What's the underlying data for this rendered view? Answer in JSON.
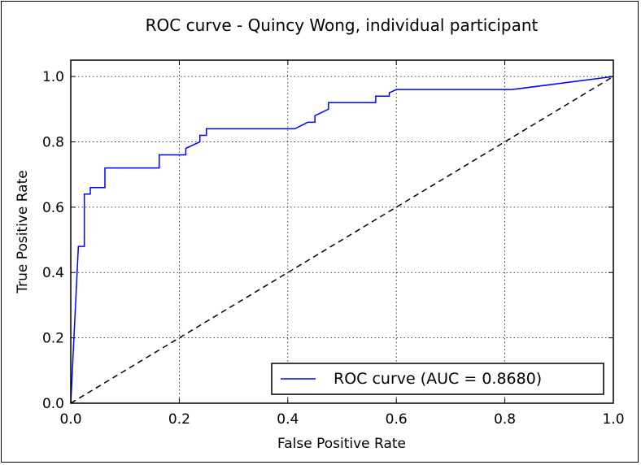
{
  "chart_data": {
    "type": "line",
    "title": "ROC curve - Quincy Wong, individual participant",
    "xlabel": "False Positive Rate",
    "ylabel": "True Positive Rate",
    "xlim": [
      0.0,
      1.0
    ],
    "ylim": [
      0.0,
      1.05
    ],
    "grid": true,
    "x_ticks": [
      0.0,
      0.2,
      0.4,
      0.6,
      0.8,
      1.0
    ],
    "x_tick_labels": [
      "0.0",
      "0.2",
      "0.4",
      "0.6",
      "0.8",
      "1.0"
    ],
    "y_ticks": [
      0.0,
      0.2,
      0.4,
      0.6,
      0.8,
      1.0
    ],
    "y_tick_labels": [
      "0.0",
      "0.2",
      "0.4",
      "0.6",
      "0.8",
      "1.0"
    ],
    "legend_placement": "lower-right",
    "series": [
      {
        "name": "ROC curve (AUC = 0.8680)",
        "color": "#0000ff",
        "style": "solid",
        "x": [
          0.0,
          0.014,
          0.014,
          0.025,
          0.025,
          0.036,
          0.036,
          0.063,
          0.063,
          0.163,
          0.163,
          0.212,
          0.212,
          0.238,
          0.238,
          0.25,
          0.25,
          0.413,
          0.413,
          0.437,
          0.45,
          0.45,
          0.475,
          0.475,
          0.562,
          0.562,
          0.587,
          0.587,
          0.6,
          0.6,
          0.813,
          1.0
        ],
        "y": [
          0.0,
          0.48,
          0.48,
          0.48,
          0.64,
          0.64,
          0.66,
          0.66,
          0.72,
          0.72,
          0.76,
          0.76,
          0.78,
          0.8,
          0.82,
          0.82,
          0.84,
          0.84,
          0.84,
          0.86,
          0.86,
          0.88,
          0.9,
          0.92,
          0.92,
          0.94,
          0.94,
          0.95,
          0.96,
          0.96,
          0.96,
          1.0
        ]
      },
      {
        "name": "",
        "color": "#000000",
        "style": "dashed",
        "x": [
          0.0,
          1.0
        ],
        "y": [
          0.0,
          1.0
        ]
      }
    ]
  }
}
